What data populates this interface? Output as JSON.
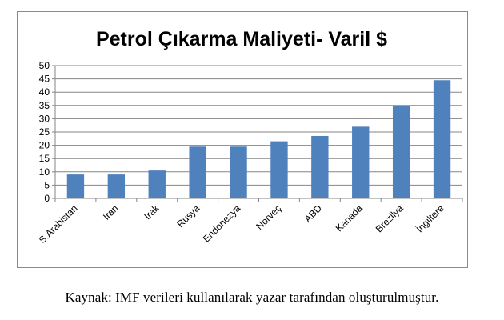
{
  "chart_data": {
    "type": "bar",
    "title": "Petrol Çıkarma Maliyeti- Varil $",
    "categories": [
      "S.Arabistan",
      "İran",
      "Irak",
      "Rusya",
      "Endonezya",
      "Norveç",
      "ABD",
      "Kanada",
      "Brezilya",
      "İngiltere"
    ],
    "values": [
      9,
      9,
      10.5,
      19.5,
      19.5,
      21.5,
      23.5,
      27,
      35,
      44.5
    ],
    "ylim": [
      0,
      50
    ],
    "yticks": [
      0,
      5,
      10,
      15,
      20,
      25,
      30,
      35,
      40,
      45,
      50
    ],
    "grid": true,
    "legend": "none",
    "bar_color": "#4f81bd"
  },
  "source_note": "Kaynak: IMF verileri kullanılarak yazar tarafından oluşturulmuştur."
}
